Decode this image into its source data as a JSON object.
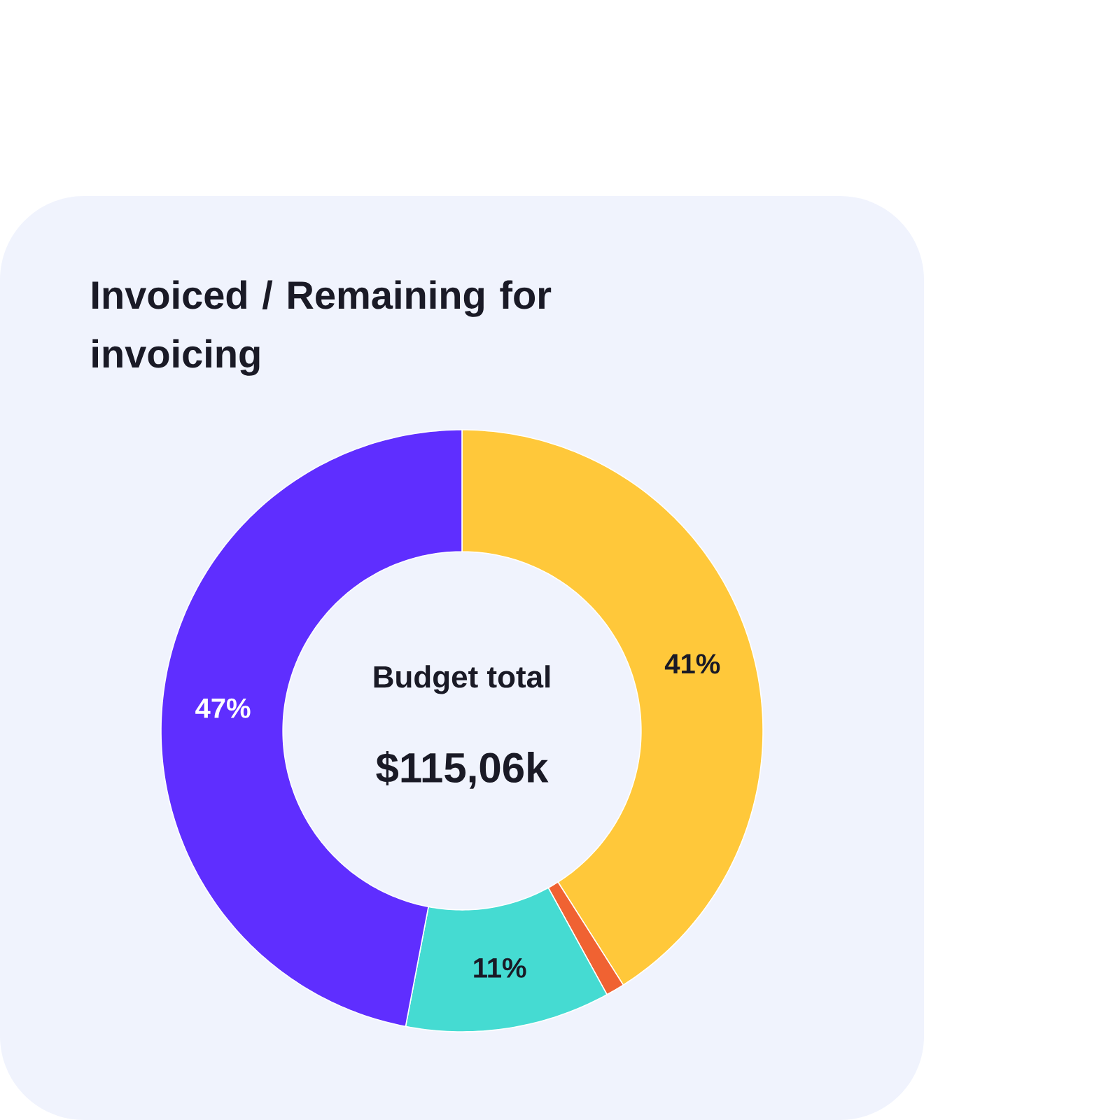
{
  "chart_data": {
    "type": "donut",
    "title": "Invoiced / Remaining for invoicing",
    "categories": [
      null,
      null,
      null,
      null
    ],
    "values": [
      41,
      1,
      11,
      47
    ],
    "colors": [
      "#ffc83a",
      "#f06232",
      "#45dbd2",
      "#5f2eff"
    ],
    "value_labels": [
      "41%",
      null,
      "11%",
      "47%"
    ],
    "annotations": [
      "Budget total",
      "$115,06k"
    ]
  }
}
